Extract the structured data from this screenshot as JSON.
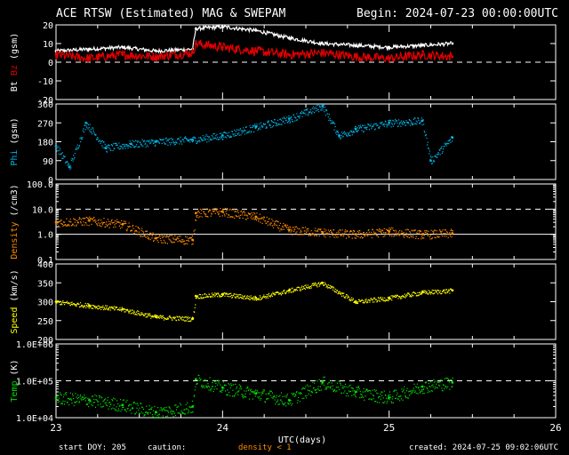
{
  "header": {
    "title": "ACE RTSW (Estimated) MAG & SWEPAM",
    "begin": "Begin: 2024-07-23 00:00:00UTC"
  },
  "footer": {
    "start_doy": "start DOY: 205",
    "caution": "caution:",
    "caution_note": "density < 1",
    "created": "created: 2024-07-25 09:02:06UTC"
  },
  "colors": {
    "background": "#000000",
    "bt": "#ffffff",
    "bz": "#e00000",
    "phi": "#00b4e6",
    "density": "#ff8c00",
    "speed": "#ffff00",
    "temp": "#00dd00"
  },
  "chart_data": [
    {
      "type": "line",
      "ylabel": [
        "Bt",
        "Bz",
        "(gsm)"
      ],
      "ylim": [
        -20,
        20
      ],
      "yticks": [
        "20",
        "10",
        "0",
        "-10",
        "-20"
      ],
      "dashed_reference": [
        0
      ],
      "series": [
        {
          "name": "Bt",
          "x": [
            23.0,
            23.2,
            23.4,
            23.6,
            23.82,
            23.84,
            24.0,
            24.2,
            24.4,
            24.6,
            24.8,
            25.0,
            25.2,
            25.38
          ],
          "values": [
            6,
            7,
            8,
            6,
            7,
            18,
            19,
            17,
            13,
            10,
            9,
            8,
            9,
            10
          ]
        },
        {
          "name": "Bz",
          "x": [
            23.0,
            23.2,
            23.4,
            23.6,
            23.82,
            23.84,
            24.0,
            24.2,
            24.4,
            24.6,
            24.8,
            25.0,
            25.2,
            25.38
          ],
          "values": [
            4,
            2,
            4,
            3,
            5,
            10,
            8,
            6,
            4,
            5,
            3,
            2,
            4,
            3
          ]
        }
      ]
    },
    {
      "type": "scatter",
      "ylabel": [
        "Phi",
        "(gsm)"
      ],
      "ylim": [
        0,
        360
      ],
      "yticks": [
        "360",
        "270",
        "180",
        "90",
        "0"
      ],
      "series": [
        {
          "name": "Phi",
          "x": [
            23.0,
            23.08,
            23.18,
            23.3,
            23.45,
            23.6,
            23.82,
            24.0,
            24.2,
            24.4,
            24.6,
            24.7,
            24.8,
            25.0,
            25.2,
            25.25,
            25.38
          ],
          "values": [
            160,
            60,
            270,
            150,
            170,
            180,
            190,
            210,
            250,
            290,
            350,
            210,
            240,
            270,
            280,
            90,
            200
          ]
        }
      ]
    },
    {
      "type": "scatter",
      "ylabel": [
        "Density",
        "(/cm3)"
      ],
      "yscale": "log",
      "ylim": [
        0.1,
        100
      ],
      "yticks": [
        "100.0",
        "10.0",
        "1.0",
        "0.1"
      ],
      "dashed_reference": [
        10
      ],
      "solid_reference": [
        1
      ],
      "series": [
        {
          "name": "Density",
          "x": [
            23.0,
            23.2,
            23.4,
            23.6,
            23.82,
            23.84,
            24.0,
            24.2,
            24.4,
            24.6,
            24.8,
            25.0,
            25.2,
            25.38
          ],
          "values": [
            3,
            3.5,
            2.5,
            0.7,
            0.6,
            7,
            8,
            5,
            1.5,
            1.2,
            1.0,
            1.3,
            1.0,
            1.1
          ]
        }
      ]
    },
    {
      "type": "scatter",
      "ylabel": [
        "Speed",
        "(km/s)"
      ],
      "ylim": [
        200,
        400
      ],
      "yticks": [
        "400",
        "350",
        "300",
        "250",
        "200"
      ],
      "series": [
        {
          "name": "Speed",
          "x": [
            23.0,
            23.2,
            23.4,
            23.6,
            23.82,
            23.84,
            24.0,
            24.2,
            24.4,
            24.6,
            24.8,
            25.0,
            25.2,
            25.38
          ],
          "values": [
            300,
            290,
            280,
            260,
            255,
            315,
            320,
            310,
            330,
            350,
            300,
            310,
            325,
            330
          ]
        }
      ]
    },
    {
      "type": "scatter",
      "ylabel": [
        "Temp",
        "(K)"
      ],
      "yscale": "log",
      "ylim": [
        10000,
        1000000
      ],
      "yticks": [
        "1.0E+06",
        "1.0E+05",
        "1.0E+04"
      ],
      "dashed_reference": [
        100000
      ],
      "xlabel": "UTC(days)",
      "xticks": [
        "23",
        "24",
        "25",
        "26"
      ],
      "xlim": [
        23,
        26
      ],
      "series": [
        {
          "name": "Temp",
          "x": [
            23.0,
            23.2,
            23.4,
            23.6,
            23.82,
            23.84,
            24.0,
            24.2,
            24.4,
            24.6,
            24.8,
            25.0,
            25.2,
            25.38
          ],
          "values": [
            35000,
            30000,
            22000,
            14000,
            20000,
            110000,
            65000,
            45000,
            30000,
            90000,
            50000,
            35000,
            70000,
            90000
          ]
        }
      ]
    }
  ]
}
